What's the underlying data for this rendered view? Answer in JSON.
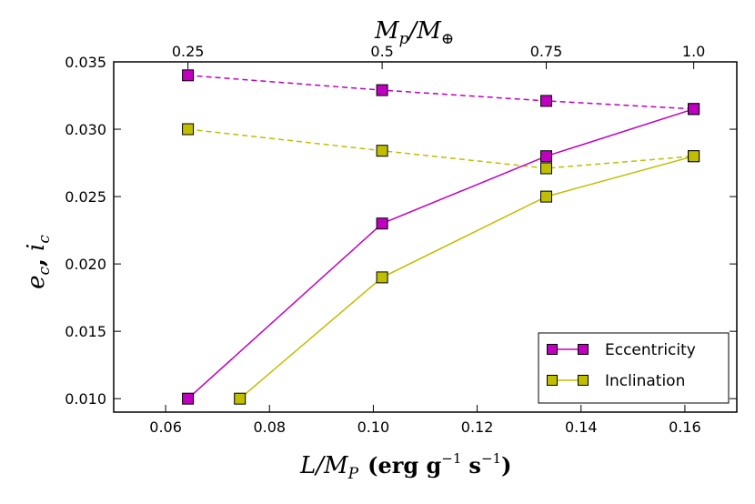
{
  "chart_data": {
    "type": "line",
    "x": [
      0.0643,
      0.1017,
      0.1333,
      0.1617
    ],
    "x_secondary": [
      0.0643,
      0.0743
    ],
    "series": [
      {
        "name": "Eccentricity",
        "color": "#c000c0",
        "style": "solid",
        "x": [
          0.0643,
          0.1017,
          0.1333,
          0.1617
        ],
        "values": [
          0.01,
          0.023,
          0.028,
          0.0315
        ]
      },
      {
        "name": "Inclination",
        "color": "#bfbf00",
        "style": "solid",
        "x": [
          0.0743,
          0.1017,
          0.1333,
          0.1617
        ],
        "values": [
          0.01,
          0.019,
          0.025,
          0.028
        ]
      },
      {
        "name": "",
        "color": "#c000c0",
        "style": "dashed",
        "x": [
          0.0643,
          0.1017,
          0.1333,
          0.1617
        ],
        "values": [
          0.034,
          0.0329,
          0.0321,
          0.0315
        ]
      },
      {
        "name": "",
        "color": "#bfbf00",
        "style": "dashed",
        "x": [
          0.0643,
          0.1017,
          0.1333,
          0.1617
        ],
        "values": [
          0.03,
          0.0284,
          0.0271,
          0.028
        ]
      }
    ],
    "xlim": [
      0.05,
      0.17
    ],
    "ylim": [
      0.009,
      0.035
    ],
    "xticks": [
      0.06,
      0.08,
      0.1,
      0.12,
      0.14,
      0.16
    ],
    "xtick_labels": [
      "0.06",
      "0.08",
      "0.10",
      "0.12",
      "0.14",
      "0.16"
    ],
    "yticks": [
      0.01,
      0.015,
      0.02,
      0.025,
      0.03,
      0.035
    ],
    "ytick_labels": [
      "0.010",
      "0.015",
      "0.020",
      "0.025",
      "0.030",
      "0.035"
    ],
    "top_ticks": [
      0.0643,
      0.1017,
      0.1333,
      0.1617
    ],
    "top_tick_labels": [
      "0.25",
      "0.5",
      "0.75",
      "1.0"
    ],
    "xlabel": "L/M_P (erg g^-1 s^-1)",
    "ylabel": "e_c, i_c",
    "top_xlabel": "M_p/M_⊕",
    "legend_position": "bottom-right",
    "grid": false
  },
  "labels": {
    "xlabel_main": "L/M",
    "xlabel_sub": "P",
    "xlabel_units": "(erg g",
    "xlabel_exp1": "−1",
    "xlabel_s": "s",
    "xlabel_exp2": "−1",
    "xlabel_close": ")",
    "ylabel_e": "e",
    "ylabel_e_sub": "c",
    "ylabel_comma": ",",
    "ylabel_i": "i",
    "ylabel_i_sub": "c",
    "top_M": "M",
    "top_p": "p",
    "top_slash": "/M",
    "top_earth": "⊕",
    "legend_ecc": "Eccentricity",
    "legend_inc": "Inclination"
  }
}
